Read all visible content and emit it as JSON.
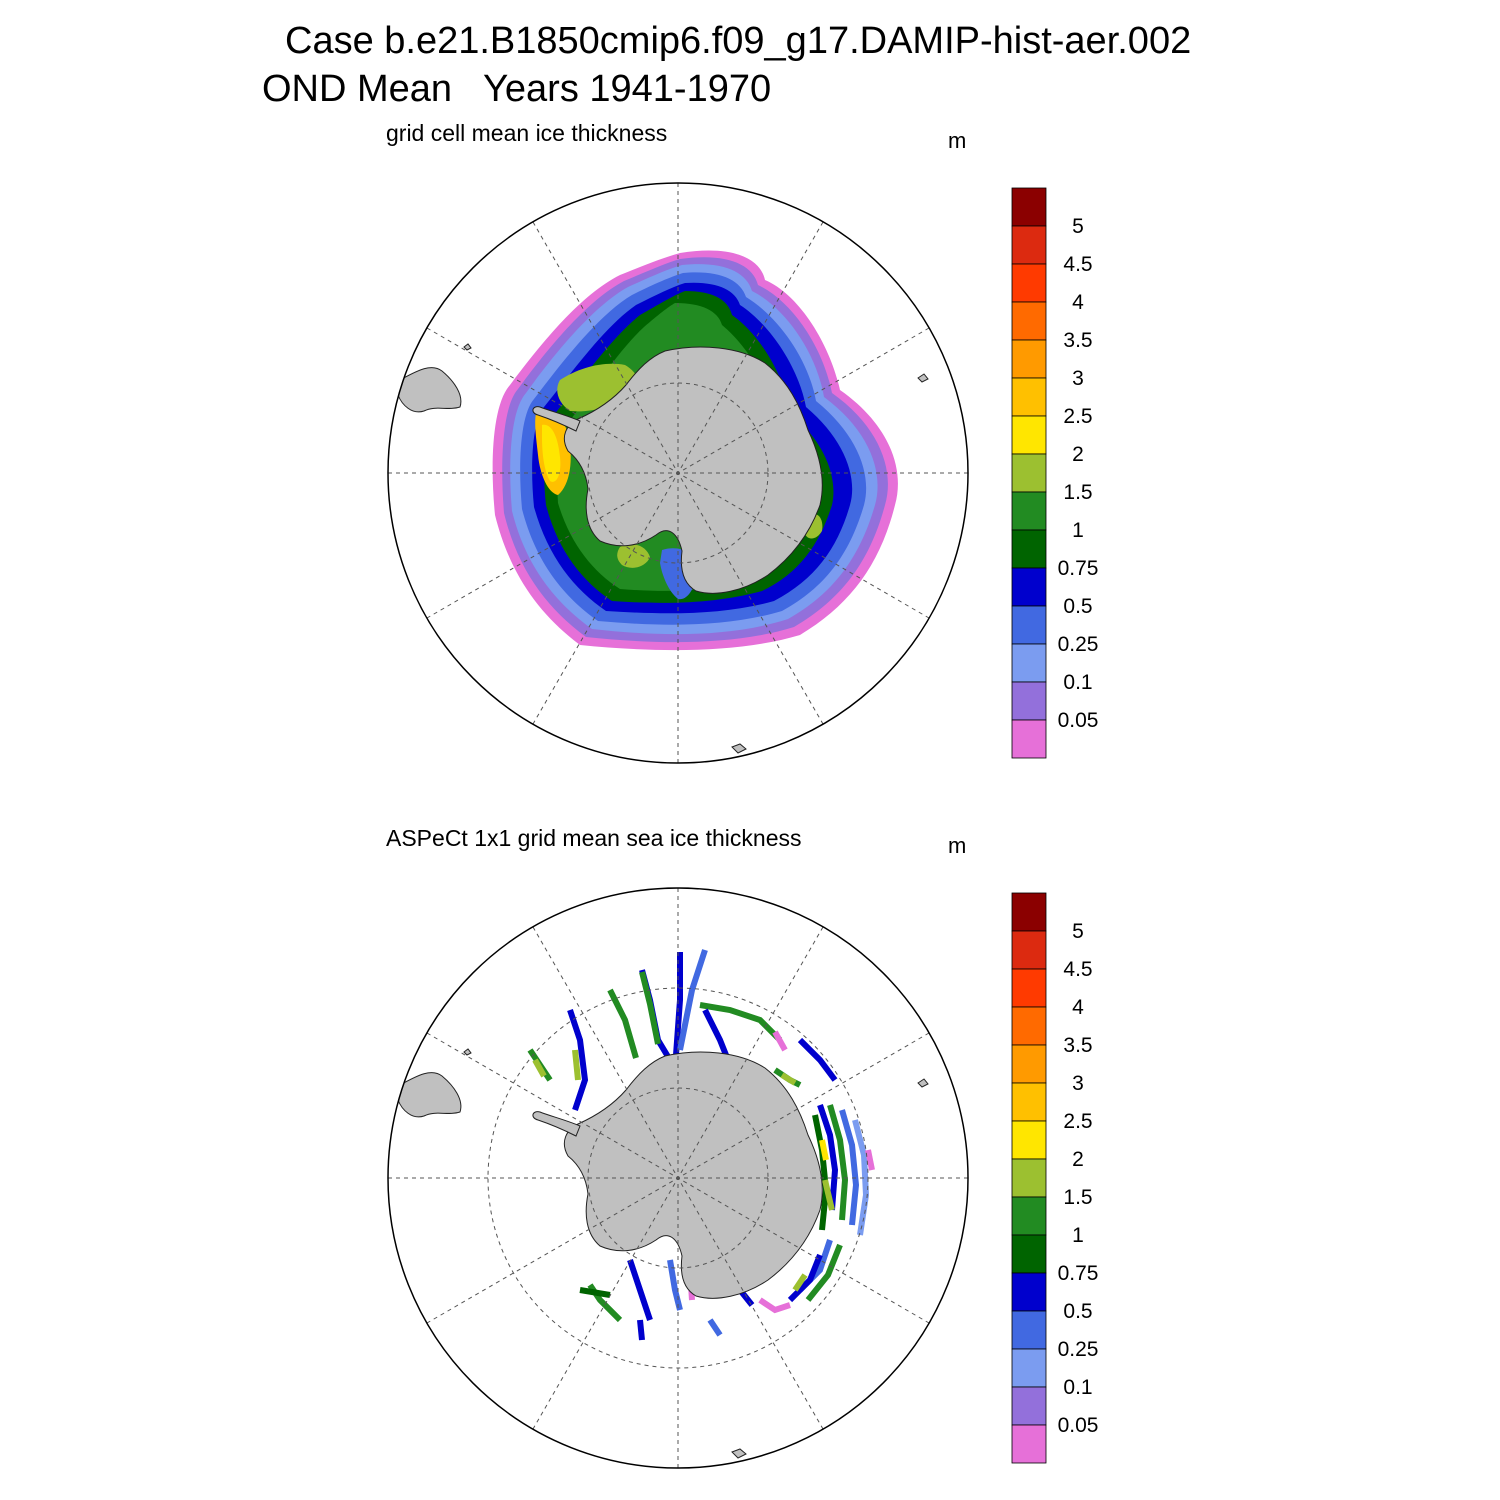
{
  "header": {
    "title_line1": "Case b.e21.B1850cmip6.f09_g17.DAMIP-hist-aer.002",
    "title_line2": "OND Mean   Years 1941-1970"
  },
  "panels": [
    {
      "title": "grid cell mean ice thickness",
      "unit": "m"
    },
    {
      "title": "ASPeCt 1x1 grid mean sea ice thickness",
      "unit": "m"
    }
  ],
  "colorbar": {
    "labels": [
      "5",
      "4.5",
      "4",
      "3.5",
      "3",
      "2.5",
      "2",
      "1.5",
      "1",
      "0.75",
      "0.5",
      "0.25",
      "0.1",
      "0.05"
    ],
    "colors_top_to_bottom": [
      "#8b0000",
      "#dc2a10",
      "#ff3a00",
      "#ff6a00",
      "#ff9a00",
      "#ffc000",
      "#ffe600",
      "#9cc030",
      "#228b22",
      "#006400",
      "#0000cd",
      "#4169e1",
      "#7b9cf0",
      "#9370db",
      "#e670d8"
    ]
  },
  "map": {
    "projection": "south polar stereographic",
    "land_color": "#c0c0c0",
    "grid_color": "#555555"
  },
  "chart_data": [
    {
      "type": "heatmap",
      "title": "grid cell mean ice thickness",
      "unit": "m",
      "levels": [
        0.05,
        0.1,
        0.25,
        0.5,
        0.75,
        1,
        1.5,
        2,
        2.5,
        3,
        3.5,
        4,
        4.5,
        5
      ],
      "description_of_field": "model sea-ice thickness ring around Antarctica; thin (0.05-0.5 m) at outer edge, 0.75-1.5 m over most of the pack, 2-3 m in the western Weddell Sea"
    },
    {
      "type": "heatmap",
      "title": "ASPeCt 1x1 grid mean sea ice thickness",
      "unit": "m",
      "levels": [
        0.05,
        0.1,
        0.25,
        0.5,
        0.75,
        1,
        1.5,
        2,
        2.5,
        3,
        3.5,
        4,
        4.5,
        5
      ],
      "description_of_field": "sparse ship-track observations, mostly 0.25-1.5 m"
    }
  ]
}
